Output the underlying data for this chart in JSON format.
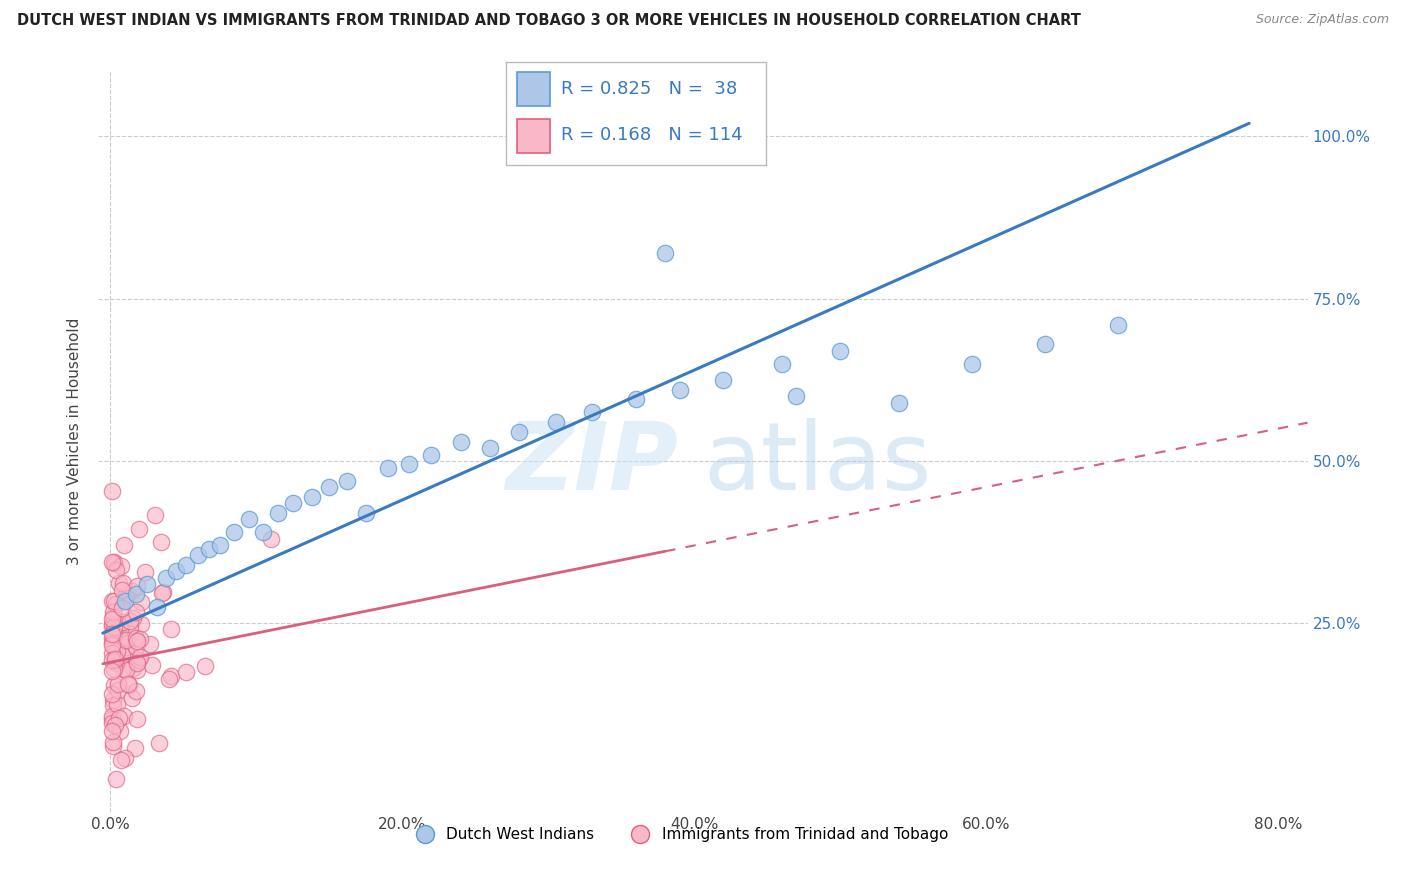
{
  "title": "DUTCH WEST INDIAN VS IMMIGRANTS FROM TRINIDAD AND TOBAGO 3 OR MORE VEHICLES IN HOUSEHOLD CORRELATION CHART",
  "source": "Source: ZipAtlas.com",
  "ylabel": "3 or more Vehicles in Household",
  "blue_color": "#aec6e8",
  "blue_edge": "#5b9bd5",
  "pink_color": "#f9b8c8",
  "pink_edge": "#e06080",
  "line_blue": "#3a7abf",
  "line_pink": "#d95f7f",
  "R_blue": 0.825,
  "N_blue": 38,
  "R_pink": 0.168,
  "N_pink": 114,
  "watermark_zip": "ZIP",
  "watermark_atlas": "atlas",
  "legend_label_blue": "Dutch West Indians",
  "legend_label_pink": "Immigrants from Trinidad and Tobago",
  "blue_color_legend": "#aec6e8",
  "blue_edge_legend": "#5b9bd5",
  "pink_color_legend": "#f9b8c8",
  "pink_edge_legend": "#e06080",
  "label_color": "#3a7abf",
  "title_color": "#222222",
  "source_color": "#888888"
}
